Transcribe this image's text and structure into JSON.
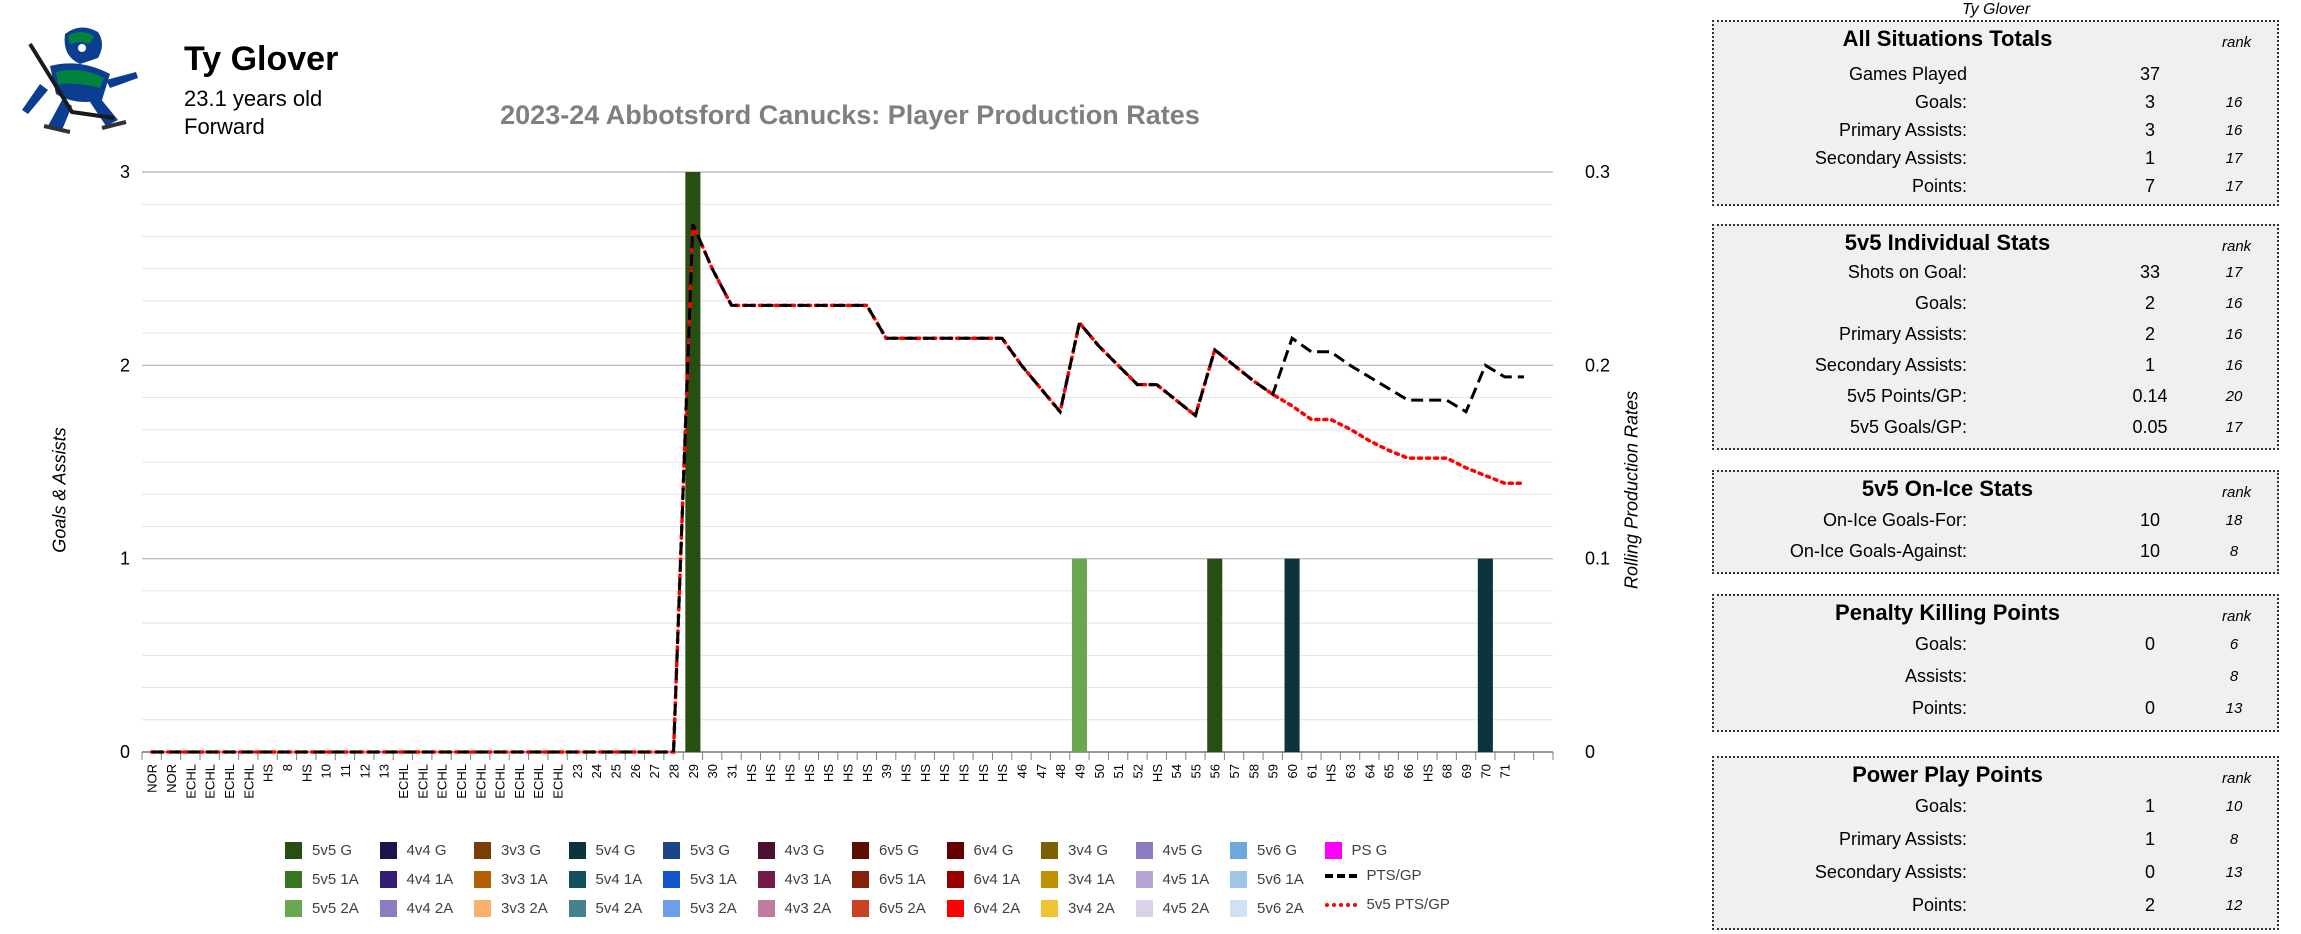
{
  "player": {
    "name": "Ty Glover",
    "age": "23.1 years old",
    "position": "Forward"
  },
  "chart_data": {
    "type": "bar",
    "title": "2023-24 Abbotsford Canucks: Player Production Rates",
    "ylabel": "Goals & Assists",
    "y2label": "Rolling Production Rates",
    "ylim": [
      0,
      3
    ],
    "y2lim": [
      0,
      0.3
    ],
    "yticks": [
      "0",
      "1",
      "2",
      "3"
    ],
    "y2ticks": [
      "0",
      "0.1",
      "0.2",
      "0.3"
    ],
    "grid": true,
    "categories": [
      "NOR",
      "NOR",
      "ECHL",
      "ECHL",
      "ECHL",
      "ECHL",
      "HS",
      "8",
      "HS",
      "10",
      "11",
      "12",
      "13",
      "ECHL",
      "ECHL",
      "ECHL",
      "ECHL",
      "ECHL",
      "ECHL",
      "ECHL",
      "ECHL",
      "ECHL",
      "23",
      "24",
      "25",
      "26",
      "27",
      "28",
      "29",
      "30",
      "31",
      "HS",
      "HS",
      "HS",
      "HS",
      "HS",
      "HS",
      "HS",
      "39",
      "HS",
      "HS",
      "HS",
      "HS",
      "HS",
      "HS",
      "46",
      "47",
      "48",
      "49",
      "50",
      "51",
      "52",
      "HS",
      "54",
      "55",
      "56",
      "57",
      "58",
      "59",
      "60",
      "61",
      "HS",
      "63",
      "64",
      "65",
      "66",
      "HS",
      "68",
      "69",
      "70",
      "71",
      "",
      ""
    ],
    "bars": [
      {
        "index": 28,
        "value": 3,
        "series": "5v5 G"
      },
      {
        "index": 48,
        "value": 1,
        "series": "5v5 2A"
      },
      {
        "index": 55,
        "value": 1,
        "series": "5v5 G"
      },
      {
        "index": 59,
        "value": 1,
        "series": "5v4 G"
      },
      {
        "index": 69,
        "value": 1,
        "series": "5v4 G"
      }
    ],
    "lines": [
      {
        "name": "PTS/GP",
        "color": "#000000",
        "style": "dash",
        "values": [
          0,
          0,
          0,
          0,
          0,
          0,
          0,
          0,
          0,
          0,
          0,
          0,
          0,
          0,
          0,
          0,
          0,
          0,
          0,
          0,
          0,
          0,
          0,
          0,
          0,
          0,
          0,
          0,
          0.273,
          0.25,
          0.231,
          0.231,
          0.231,
          0.231,
          0.231,
          0.231,
          0.231,
          0.231,
          0.214,
          0.214,
          0.214,
          0.214,
          0.214,
          0.214,
          0.214,
          0.2,
          0.188,
          0.176,
          0.222,
          0.21,
          0.2,
          0.19,
          0.19,
          0.182,
          0.174,
          0.208,
          0.2,
          0.192,
          0.185,
          0.214,
          0.207,
          0.207,
          0.2,
          0.194,
          0.188,
          0.182,
          0.182,
          0.182,
          0.176,
          0.2,
          0.194,
          0.194
        ]
      },
      {
        "name": "5v5 PTS/GP",
        "color": "#ff0000",
        "style": "dot",
        "values": [
          0,
          0,
          0,
          0,
          0,
          0,
          0,
          0,
          0,
          0,
          0,
          0,
          0,
          0,
          0,
          0,
          0,
          0,
          0,
          0,
          0,
          0,
          0,
          0,
          0,
          0,
          0,
          0,
          0.273,
          0.25,
          0.231,
          0.231,
          0.231,
          0.231,
          0.231,
          0.231,
          0.231,
          0.231,
          0.214,
          0.214,
          0.214,
          0.214,
          0.214,
          0.214,
          0.214,
          0.2,
          0.188,
          0.176,
          0.222,
          0.21,
          0.2,
          0.19,
          0.19,
          0.182,
          0.174,
          0.208,
          0.2,
          0.192,
          0.185,
          0.179,
          0.172,
          0.172,
          0.167,
          0.161,
          0.156,
          0.152,
          0.152,
          0.152,
          0.147,
          0.143,
          0.139,
          0.139
        ]
      }
    ],
    "legend": [
      {
        "label": "5v5 G",
        "color": "#274e13"
      },
      {
        "label": "5v5 1A",
        "color": "#38761d"
      },
      {
        "label": "5v5 2A",
        "color": "#6aa84f"
      },
      {
        "label": "4v4 G",
        "color": "#20124d"
      },
      {
        "label": "4v4 1A",
        "color": "#351c75"
      },
      {
        "label": "4v4 2A",
        "color": "#8e7cc3"
      },
      {
        "label": "3v3 G",
        "color": "#783f04"
      },
      {
        "label": "3v3 1A",
        "color": "#b45f06"
      },
      {
        "label": "3v3 2A",
        "color": "#f6b26b"
      },
      {
        "label": "5v4 G",
        "color": "#0c343d"
      },
      {
        "label": "5v4 1A",
        "color": "#134f5c"
      },
      {
        "label": "5v4 2A",
        "color": "#45818e"
      },
      {
        "label": "5v3 G",
        "color": "#1c4587"
      },
      {
        "label": "5v3 1A",
        "color": "#1155cc"
      },
      {
        "label": "5v3 2A",
        "color": "#6d9eeb"
      },
      {
        "label": "4v3 G",
        "color": "#4c1130"
      },
      {
        "label": "4v3 1A",
        "color": "#741b47"
      },
      {
        "label": "4v3 2A",
        "color": "#c27ba0"
      },
      {
        "label": "6v5 G",
        "color": "#5b0f00"
      },
      {
        "label": "6v5 1A",
        "color": "#85200c"
      },
      {
        "label": "6v5 2A",
        "color": "#cc4125"
      },
      {
        "label": "6v4 G",
        "color": "#660000"
      },
      {
        "label": "6v4 1A",
        "color": "#990000"
      },
      {
        "label": "6v4 2A",
        "color": "#ff0000"
      },
      {
        "label": "3v4 G",
        "color": "#7f6000"
      },
      {
        "label": "3v4 1A",
        "color": "#bf9000"
      },
      {
        "label": "3v4 2A",
        "color": "#f1c232"
      },
      {
        "label": "4v5 G",
        "color": "#8e7cc3"
      },
      {
        "label": "4v5 1A",
        "color": "#b4a7d6"
      },
      {
        "label": "4v5 2A",
        "color": "#d9d2e9"
      },
      {
        "label": "5v6 G",
        "color": "#6fa8dc"
      },
      {
        "label": "5v6 1A",
        "color": "#9fc5e8"
      },
      {
        "label": "5v6 2A",
        "color": "#cfe2f3"
      },
      {
        "label": "PS G",
        "color": "#ff00ff"
      }
    ],
    "line_legend": [
      {
        "label": "PTS/GP",
        "color": "#000000",
        "style": "dash"
      },
      {
        "label": "5v5 PTS/GP",
        "color": "#ff0000",
        "style": "dot"
      }
    ]
  },
  "stats_panel": {
    "caption": "Ty Glover",
    "rank_header": "rank",
    "sections": [
      {
        "title": "All Situations Totals",
        "rows": [
          {
            "label": "Games Played",
            "value": "37",
            "rank": ""
          },
          {
            "label": "Goals:",
            "value": "3",
            "rank": "16"
          },
          {
            "label": "Primary Assists:",
            "value": "3",
            "rank": "16"
          },
          {
            "label": "Secondary Assists:",
            "value": "1",
            "rank": "17"
          },
          {
            "label": "Points:",
            "value": "7",
            "rank": "17"
          }
        ]
      },
      {
        "title": "5v5 Individual Stats",
        "rows": [
          {
            "label": "Shots on Goal:",
            "value": "33",
            "rank": "17"
          },
          {
            "label": "Goals:",
            "value": "2",
            "rank": "16"
          },
          {
            "label": "Primary Assists:",
            "value": "2",
            "rank": "16"
          },
          {
            "label": "Secondary Assists:",
            "value": "1",
            "rank": "16"
          },
          {
            "label": "5v5 Points/GP:",
            "value": "0.14",
            "rank": "20"
          },
          {
            "label": "5v5 Goals/GP:",
            "value": "0.05",
            "rank": "17"
          }
        ]
      },
      {
        "title": "5v5 On-Ice Stats",
        "rows": [
          {
            "label": "On-Ice Goals-For:",
            "value": "10",
            "rank": "18"
          },
          {
            "label": "On-Ice Goals-Against:",
            "value": "10",
            "rank": "8"
          }
        ]
      },
      {
        "title": "Penalty Killing Points",
        "rows": [
          {
            "label": "Goals:",
            "value": "0",
            "rank": "6"
          },
          {
            "label": "Assists:",
            "value": "",
            "rank": "8"
          },
          {
            "label": "Points:",
            "value": "0",
            "rank": "13"
          }
        ]
      },
      {
        "title": "Power Play Points",
        "rows": [
          {
            "label": "Goals:",
            "value": "1",
            "rank": "10"
          },
          {
            "label": "Primary Assists:",
            "value": "1",
            "rank": "8"
          },
          {
            "label": "Secondary Assists:",
            "value": "0",
            "rank": "13"
          },
          {
            "label": "Points:",
            "value": "2",
            "rank": "12"
          }
        ]
      }
    ]
  }
}
